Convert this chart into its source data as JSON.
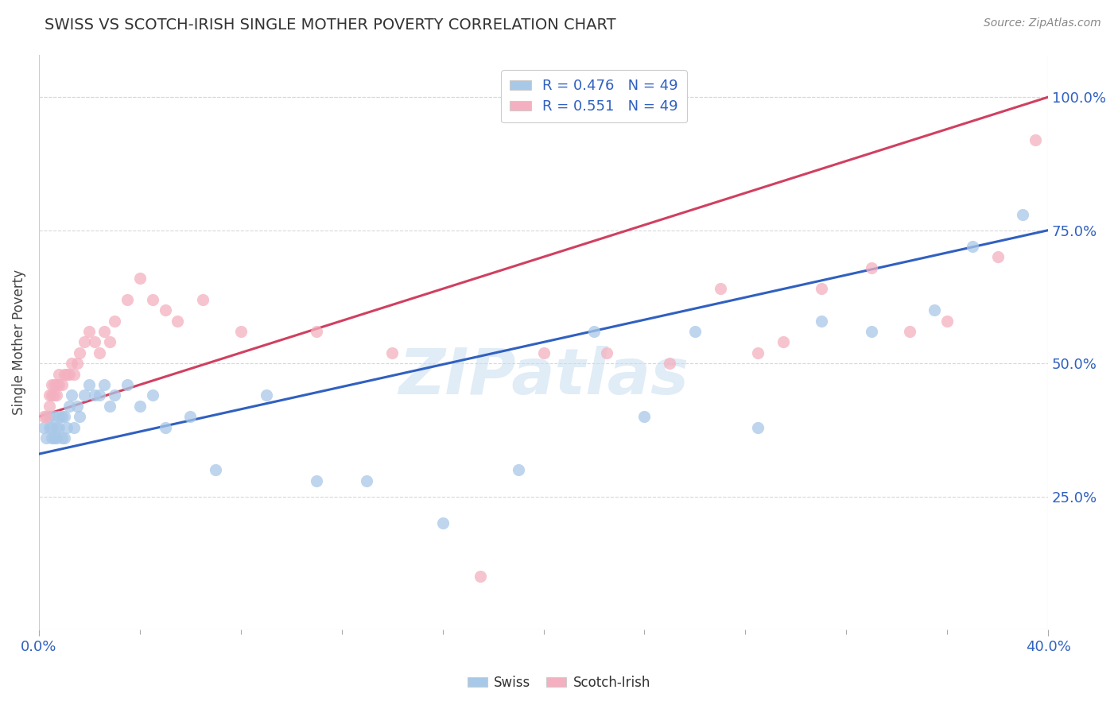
{
  "title": "SWISS VS SCOTCH-IRISH SINGLE MOTHER POVERTY CORRELATION CHART",
  "source": "Source: ZipAtlas.com",
  "ylabel": "Single Mother Poverty",
  "xlim": [
    0.0,
    0.4
  ],
  "ylim": [
    0.0,
    1.08
  ],
  "swiss_R": 0.476,
  "swiss_N": 49,
  "scotch_R": 0.551,
  "scotch_N": 49,
  "swiss_color": "#a8c8e8",
  "scotch_color": "#f4b0c0",
  "swiss_line_color": "#3060c0",
  "scotch_line_color": "#d04060",
  "background_color": "#ffffff",
  "grid_color": "#d8d8d8",
  "swiss_line_x0": 0.0,
  "swiss_line_y0": 0.33,
  "swiss_line_x1": 0.4,
  "swiss_line_y1": 0.75,
  "scotch_line_x0": 0.0,
  "scotch_line_y0": 0.4,
  "scotch_line_x1": 0.4,
  "scotch_line_y1": 1.0,
  "swiss_x": [
    0.002,
    0.003,
    0.004,
    0.004,
    0.005,
    0.005,
    0.006,
    0.006,
    0.007,
    0.007,
    0.008,
    0.008,
    0.009,
    0.009,
    0.01,
    0.01,
    0.011,
    0.012,
    0.013,
    0.014,
    0.015,
    0.016,
    0.018,
    0.02,
    0.022,
    0.024,
    0.026,
    0.028,
    0.03,
    0.035,
    0.04,
    0.045,
    0.05,
    0.06,
    0.07,
    0.09,
    0.11,
    0.13,
    0.16,
    0.19,
    0.22,
    0.24,
    0.26,
    0.285,
    0.31,
    0.33,
    0.355,
    0.37,
    0.39
  ],
  "swiss_y": [
    0.38,
    0.36,
    0.4,
    0.38,
    0.36,
    0.38,
    0.36,
    0.4,
    0.36,
    0.38,
    0.38,
    0.4,
    0.36,
    0.4,
    0.4,
    0.36,
    0.38,
    0.42,
    0.44,
    0.38,
    0.42,
    0.4,
    0.44,
    0.46,
    0.44,
    0.44,
    0.46,
    0.42,
    0.44,
    0.46,
    0.42,
    0.44,
    0.38,
    0.4,
    0.3,
    0.44,
    0.28,
    0.28,
    0.2,
    0.3,
    0.56,
    0.4,
    0.56,
    0.38,
    0.58,
    0.56,
    0.6,
    0.72,
    0.78
  ],
  "scotch_x": [
    0.002,
    0.003,
    0.004,
    0.004,
    0.005,
    0.005,
    0.006,
    0.006,
    0.007,
    0.007,
    0.008,
    0.008,
    0.009,
    0.01,
    0.011,
    0.012,
    0.013,
    0.014,
    0.015,
    0.016,
    0.018,
    0.02,
    0.022,
    0.024,
    0.026,
    0.028,
    0.03,
    0.035,
    0.04,
    0.045,
    0.05,
    0.055,
    0.065,
    0.08,
    0.11,
    0.14,
    0.175,
    0.2,
    0.225,
    0.25,
    0.27,
    0.285,
    0.295,
    0.31,
    0.33,
    0.345,
    0.36,
    0.38,
    0.395
  ],
  "scotch_y": [
    0.4,
    0.4,
    0.42,
    0.44,
    0.44,
    0.46,
    0.44,
    0.46,
    0.44,
    0.46,
    0.46,
    0.48,
    0.46,
    0.48,
    0.48,
    0.48,
    0.5,
    0.48,
    0.5,
    0.52,
    0.54,
    0.56,
    0.54,
    0.52,
    0.56,
    0.54,
    0.58,
    0.62,
    0.66,
    0.62,
    0.6,
    0.58,
    0.62,
    0.56,
    0.56,
    0.52,
    0.1,
    0.52,
    0.52,
    0.5,
    0.64,
    0.52,
    0.54,
    0.64,
    0.68,
    0.56,
    0.58,
    0.7,
    0.92
  ]
}
